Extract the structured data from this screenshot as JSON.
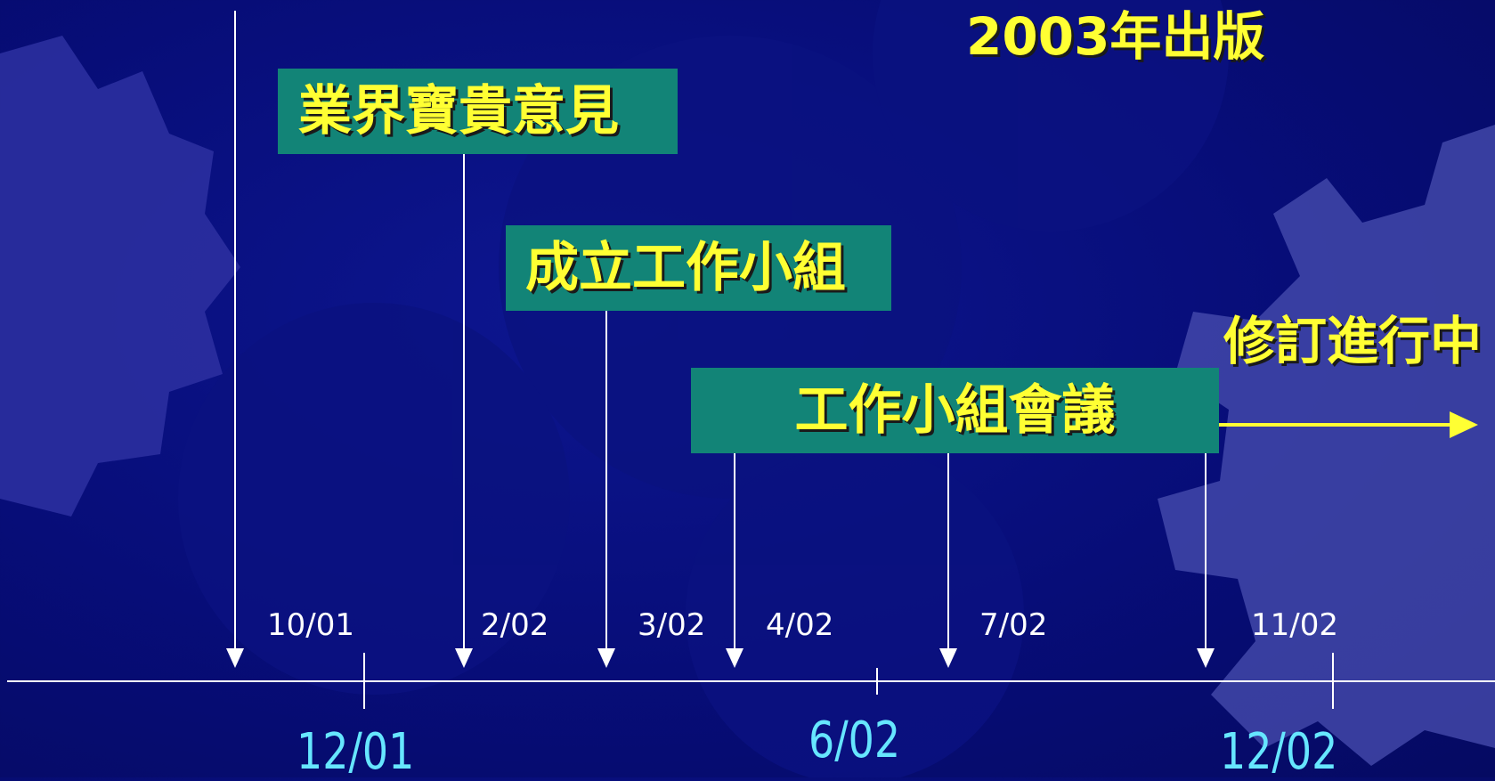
{
  "published_label": "2003年出版",
  "ongoing_label": "修訂進行中",
  "boxes": {
    "industry_feedback": "業界寶貴意見",
    "form_working_group": "成立工作小組",
    "working_group_meetings": "工作小組會議"
  },
  "arrow_dates": [
    "10/01",
    "2/02",
    "3/02",
    "4/02",
    "7/02",
    "11/02"
  ],
  "axis_dates": [
    "12/01",
    "6/02",
    "12/02"
  ],
  "colors": {
    "background": "#070d78",
    "box_fill": "#128477",
    "highlight_text": "#ffff33",
    "axis_date_text": "#66e6ff",
    "line": "#ffffff"
  }
}
